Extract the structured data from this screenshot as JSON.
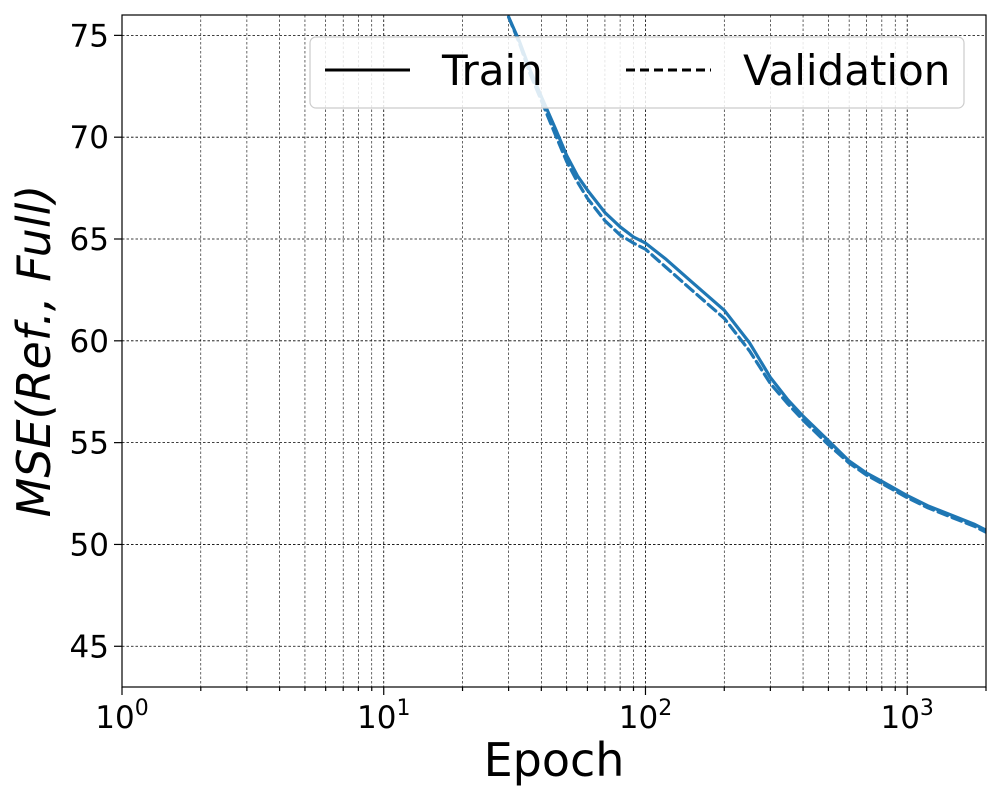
{
  "chart_data": {
    "type": "line",
    "xlabel": "Epoch",
    "ylabel": "MSE(Ref., Full)",
    "x_scale": "log",
    "xlim": [
      1,
      2000
    ],
    "ylim": [
      43,
      76
    ],
    "grid": true,
    "grid_style": "dashed",
    "legend_placement": "top-right",
    "x_ticks": [
      {
        "value": 1,
        "base": "10",
        "exp": "0"
      },
      {
        "value": 10,
        "base": "10",
        "exp": "1"
      },
      {
        "value": 100,
        "base": "10",
        "exp": "2"
      },
      {
        "value": 1000,
        "base": "10",
        "exp": "3"
      }
    ],
    "y_ticks": [
      45,
      50,
      55,
      60,
      65,
      70,
      75
    ],
    "line_color": "#1f77b4",
    "legend": [
      {
        "label": "Train",
        "style": "solid"
      },
      {
        "label": "Validation",
        "style": "dashed"
      }
    ],
    "series": [
      {
        "name": "Train",
        "style": "solid",
        "x": [
          30,
          33,
          36,
          40,
          45,
          50,
          55,
          60,
          70,
          80,
          90,
          100,
          120,
          150,
          200,
          250,
          300,
          350,
          400,
          500,
          600,
          700,
          800,
          1000,
          1200,
          1500,
          1800,
          2000
        ],
        "y": [
          75.9,
          74.7,
          73.4,
          72.0,
          70.5,
          69.1,
          68.1,
          67.4,
          66.3,
          65.6,
          65.1,
          64.8,
          64.0,
          62.9,
          61.5,
          59.9,
          58.2,
          57.1,
          56.3,
          55.1,
          54.1,
          53.5,
          53.1,
          52.4,
          51.9,
          51.4,
          51.0,
          50.7
        ]
      },
      {
        "name": "Validation",
        "style": "dashed",
        "x": [
          30,
          33,
          36,
          40,
          45,
          50,
          55,
          60,
          70,
          80,
          90,
          100,
          120,
          150,
          200,
          250,
          300,
          350,
          400,
          500,
          600,
          700,
          800,
          1000,
          1200,
          1500,
          1800,
          2000
        ],
        "y": [
          75.9,
          74.6,
          73.2,
          71.8,
          70.2,
          68.8,
          67.8,
          67.0,
          65.9,
          65.2,
          64.8,
          64.5,
          63.6,
          62.5,
          61.1,
          59.5,
          57.9,
          56.9,
          56.1,
          54.9,
          54.0,
          53.4,
          53.0,
          52.3,
          51.8,
          51.3,
          50.9,
          50.6
        ]
      }
    ]
  }
}
